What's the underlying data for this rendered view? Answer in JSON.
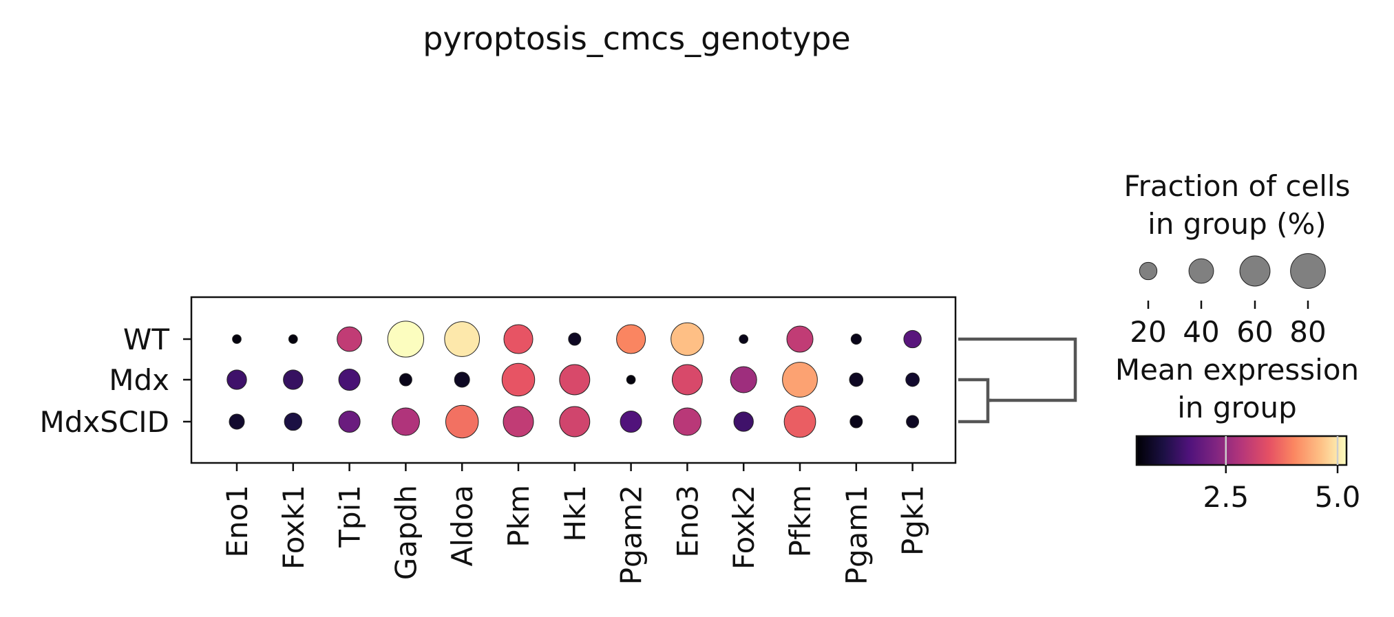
{
  "chart_data": {
    "type": "dotplot",
    "title": "pyroptosis_cmcs_genotype",
    "genes": [
      "Eno1",
      "Foxk1",
      "Tpi1",
      "Gapdh",
      "Aldoa",
      "Pkm",
      "Hk1",
      "Pgam2",
      "Eno3",
      "Foxk2",
      "Pfkm",
      "Pgam1",
      "Pgk1"
    ],
    "groups": [
      "WT",
      "Mdx",
      "MdxSCID"
    ],
    "mean_expression": [
      [
        0.6,
        0.6,
        3.0,
        5.2,
        5.0,
        3.5,
        0.8,
        4.0,
        4.6,
        0.7,
        3.0,
        0.7,
        1.8
      ],
      [
        1.5,
        1.4,
        1.6,
        0.7,
        0.8,
        3.5,
        3.3,
        0.6,
        3.3,
        2.6,
        4.3,
        0.8,
        0.9
      ],
      [
        0.9,
        1.1,
        2.0,
        2.8,
        3.8,
        3.0,
        3.2,
        1.7,
        2.9,
        1.5,
        3.6,
        0.7,
        0.8
      ]
    ],
    "fraction_pct": [
      [
        5,
        5,
        40,
        85,
        80,
        55,
        10,
        55,
        70,
        5,
        45,
        7,
        20
      ],
      [
        25,
        25,
        30,
        10,
        15,
        70,
        60,
        5,
        60,
        45,
        80,
        12,
        12
      ],
      [
        15,
        20,
        30,
        50,
        70,
        60,
        60,
        30,
        50,
        25,
        65,
        10,
        10
      ]
    ],
    "colormap": "magma",
    "color_range": [
      0.5,
      5.2
    ],
    "colorbar_ticks": [
      "2.5",
      "5.0"
    ],
    "colorbar_tick_values": [
      2.5,
      5.0
    ],
    "colorbar_title_lines": [
      "Mean expression",
      "in group"
    ],
    "size_legend_title_lines": [
      "Fraction of cells",
      "in group (%)"
    ],
    "size_legend_values": [
      20,
      40,
      60,
      80
    ],
    "dendrogram": "WT vs (Mdx, MdxSCID)",
    "dot_edge_color": "#222222",
    "dendrogram_color": "#555555"
  }
}
